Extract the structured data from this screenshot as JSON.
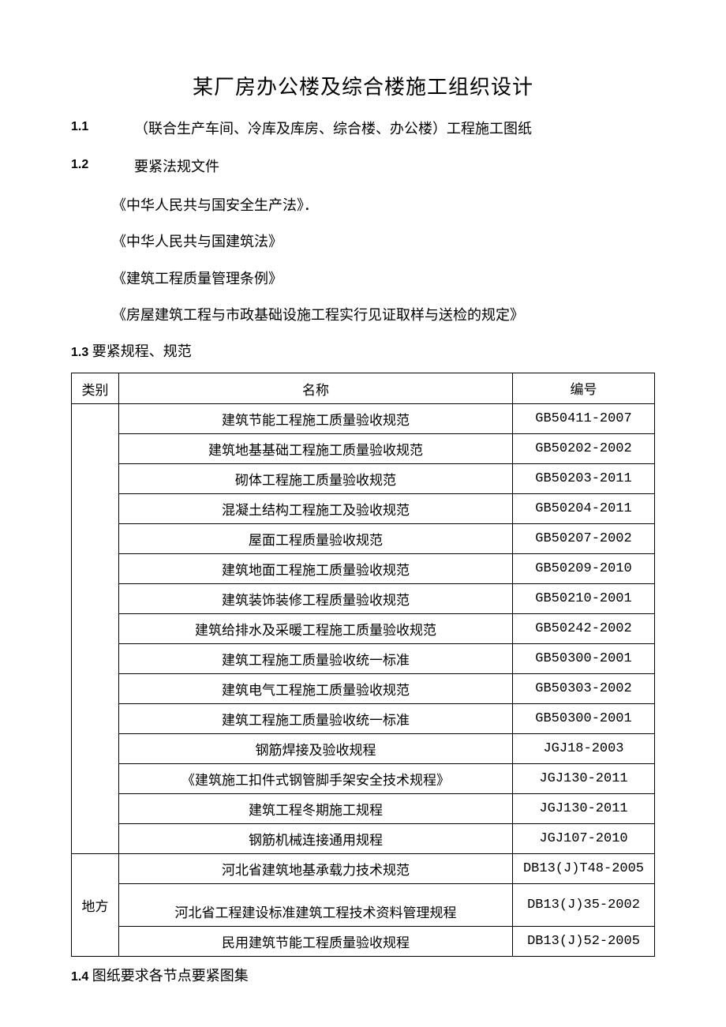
{
  "title": "某厂房办公楼及综合楼施工组织设计",
  "section11_num": "1.1",
  "section11_text": "（联合生产车间、冷库及库房、综合楼、办公楼）工程施工图纸",
  "section12_num": "1.2",
  "section12_text": "要紧法规文件",
  "law1": "《中华人民共与国安全生产法》．",
  "law2": "《中华人民共与国建筑法》",
  "law3": "《建筑工程质量管理条例》",
  "law4": "《房屋建筑工程与市政基础设施工程实行见证取样与送检的规定》",
  "section13_num": "1.3",
  "section13_text": "要紧规程、规范",
  "table": {
    "header": {
      "cat": "类别",
      "name": "名称",
      "code": "编号"
    },
    "group1_cat": "",
    "group1_rows": [
      {
        "name": "建筑节能工程施工质量验收规范",
        "code": "GB50411-2007"
      },
      {
        "name": "建筑地基基础工程施工质量验收规范",
        "code": "GB50202-2002"
      },
      {
        "name": "砌体工程施工质量验收规范",
        "code": "GB50203-2011"
      },
      {
        "name": "混凝土结构工程施工及验收规范",
        "code": "GB50204-2011"
      },
      {
        "name": "屋面工程质量验收规范",
        "code": "GB50207-2002"
      },
      {
        "name": "建筑地面工程施工质量验收规范",
        "code": "GB50209-2010"
      },
      {
        "name": "建筑装饰装修工程质量验收规范",
        "code": "GB50210-2001"
      },
      {
        "name": "建筑给排水及采暖工程施工质量验收规范",
        "code": "GB50242-2002"
      },
      {
        "name": "建筑工程施工质量验收统一标准",
        "code": "GB50300-2001"
      },
      {
        "name": "建筑电气工程施工质量验收规范",
        "code": "GB50303-2002"
      },
      {
        "name": "建筑工程施工质量验收统一标准",
        "code": "GB50300-2001"
      },
      {
        "name": "钢筋焊接及验收规程",
        "code": "JGJ18-2003"
      },
      {
        "name": "《建筑施工扣件式钢管脚手架安全技术规程》",
        "code": "JGJ130-2011"
      },
      {
        "name": "建筑工程冬期施工规程",
        "code": "JGJ130-2011"
      },
      {
        "name": "钢筋机械连接通用规程",
        "code": "JGJ107-2010"
      }
    ],
    "group2_cat": "地方",
    "group2_rows": [
      {
        "name": "河北省建筑地基承载力技术规范",
        "code": "DB13(J)T48-2005"
      },
      {
        "name": "河北省工程建设标准建筑工程技术资料管理规程",
        "code": "DB13(J)35-2002"
      },
      {
        "name": "民用建筑节能工程质量验收规程",
        "code": "DB13(J)52-2005"
      }
    ]
  },
  "section14_num": "1.4",
  "section14_text": "图纸要求各节点要紧图集"
}
